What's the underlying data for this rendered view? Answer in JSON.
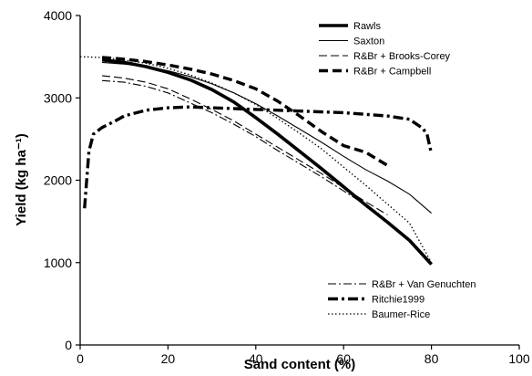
{
  "chart_data": {
    "type": "line",
    "xlabel": "Sand content (%)",
    "ylabel": "Yield (kg ha⁻¹)",
    "xlim": [
      0,
      100
    ],
    "ylim": [
      0,
      4000
    ],
    "x_ticks": [
      0,
      20,
      40,
      60,
      80,
      100
    ],
    "y_ticks": [
      0,
      1000,
      2000,
      3000,
      4000
    ],
    "grid": false,
    "legend_placement": "top-right and bottom-right",
    "series": [
      {
        "name": "Rawls",
        "style": "thick-solid",
        "legend_group": "top",
        "x": [
          5,
          10,
          15,
          20,
          25,
          30,
          35,
          40,
          45,
          50,
          55,
          60,
          65,
          70,
          75,
          80
        ],
        "y": [
          3460,
          3430,
          3380,
          3310,
          3220,
          3100,
          2950,
          2760,
          2560,
          2350,
          2140,
          1920,
          1700,
          1490,
          1270,
          980
        ]
      },
      {
        "name": "Saxton",
        "style": "thin-solid",
        "legend_group": "top",
        "x": [
          5,
          10,
          15,
          20,
          25,
          30,
          35,
          40,
          45,
          50,
          55,
          60,
          65,
          70,
          75,
          80
        ],
        "y": [
          3430,
          3410,
          3380,
          3330,
          3260,
          3170,
          3060,
          2930,
          2780,
          2620,
          2460,
          2290,
          2130,
          1990,
          1830,
          1600
        ]
      },
      {
        "name": "R&Br + Brooks-Corey",
        "style": "thin-dashed",
        "legend_group": "top",
        "x": [
          5,
          10,
          15,
          20,
          25,
          30,
          35,
          40,
          45,
          50,
          55,
          60,
          65,
          70
        ],
        "y": [
          3270,
          3240,
          3190,
          3110,
          2990,
          2860,
          2720,
          2560,
          2400,
          2240,
          2080,
          1910,
          1740,
          1580
        ]
      },
      {
        "name": "R&Br + Campbell",
        "style": "thick-dashed",
        "legend_group": "top",
        "x": [
          5,
          10,
          15,
          20,
          25,
          30,
          35,
          40,
          45,
          50,
          55,
          60,
          65,
          70
        ],
        "y": [
          3490,
          3470,
          3440,
          3400,
          3350,
          3290,
          3210,
          3110,
          2960,
          2780,
          2590,
          2420,
          2340,
          2180
        ]
      },
      {
        "name": "R&Br + Van Genuchten",
        "style": "thin-dashdot",
        "legend_group": "bottom",
        "x": [
          5,
          10,
          15,
          20,
          25,
          30,
          35,
          40,
          45,
          50,
          55,
          60,
          65,
          68
        ],
        "y": [
          3210,
          3190,
          3140,
          3060,
          2940,
          2820,
          2680,
          2530,
          2360,
          2200,
          2040,
          1870,
          1700,
          1600
        ]
      },
      {
        "name": "Ritchie1999",
        "style": "thick-dashdot",
        "legend_group": "bottom",
        "x": [
          1,
          2,
          3,
          5,
          8,
          10,
          15,
          20,
          25,
          30,
          40,
          50,
          60,
          70,
          75,
          78,
          79,
          80
        ],
        "y": [
          1660,
          2350,
          2560,
          2640,
          2720,
          2780,
          2850,
          2880,
          2890,
          2880,
          2860,
          2840,
          2820,
          2780,
          2740,
          2630,
          2560,
          2320
        ]
      },
      {
        "name": "Baumer-Rice",
        "style": "dotted",
        "legend_group": "bottom",
        "x": [
          0,
          5,
          10,
          15,
          20,
          25,
          30,
          35,
          40,
          45,
          50,
          55,
          60,
          65,
          70,
          75,
          80
        ],
        "y": [
          3500,
          3490,
          3460,
          3420,
          3360,
          3280,
          3180,
          3060,
          2920,
          2750,
          2570,
          2380,
          2160,
          1940,
          1710,
          1480,
          1000
        ]
      }
    ]
  }
}
